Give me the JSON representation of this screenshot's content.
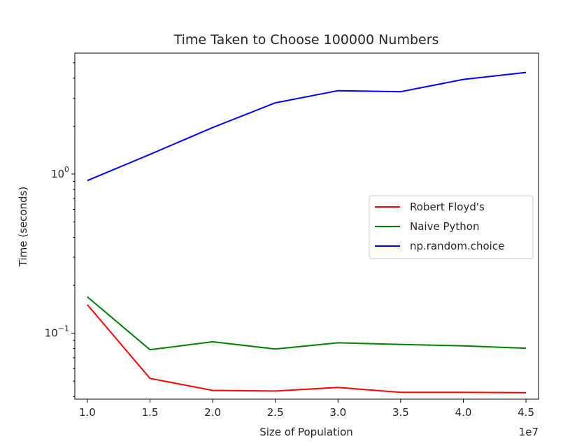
{
  "chart_data": {
    "type": "line",
    "title": "Time Taken to Choose 100000 Numbers",
    "xlabel": "Size of Population",
    "ylabel": "Time (seconds)",
    "x_offset_label": "1e7",
    "x": [
      1.0,
      1.5,
      2.0,
      2.5,
      3.0,
      3.5,
      4.0,
      4.5
    ],
    "x_ticks": [
      {
        "value": 1.0,
        "label": "1.0"
      },
      {
        "value": 1.5,
        "label": "1.5"
      },
      {
        "value": 2.0,
        "label": "2.0"
      },
      {
        "value": 2.5,
        "label": "2.5"
      },
      {
        "value": 3.0,
        "label": "3.0"
      },
      {
        "value": 3.5,
        "label": "3.5"
      },
      {
        "value": 4.0,
        "label": "4.0"
      },
      {
        "value": 4.5,
        "label": "4.5"
      }
    ],
    "y_scale": "log",
    "y_ticks": [
      {
        "value": 0.1,
        "base": "10",
        "exp": "−1"
      },
      {
        "value": 1,
        "base": "10",
        "exp": "0"
      }
    ],
    "xlim": [
      0.9,
      4.6
    ],
    "ylim": [
      0.0385,
      5.75
    ],
    "grid": false,
    "legend_position": "center-right",
    "series": [
      {
        "name": "Robert Floyd's",
        "color": "#ff0000",
        "values": [
          0.151,
          0.052,
          0.0437,
          0.0433,
          0.0456,
          0.0425,
          0.0425,
          0.0423
        ]
      },
      {
        "name": "Naive Python",
        "color": "#008000",
        "values": [
          0.169,
          0.0787,
          0.0883,
          0.0795,
          0.087,
          0.085,
          0.0833,
          0.0805
        ]
      },
      {
        "name": "np.random.choice",
        "color": "#0000ff",
        "values": [
          0.91,
          1.33,
          1.96,
          2.8,
          3.34,
          3.29,
          3.93,
          4.35
        ]
      }
    ]
  }
}
